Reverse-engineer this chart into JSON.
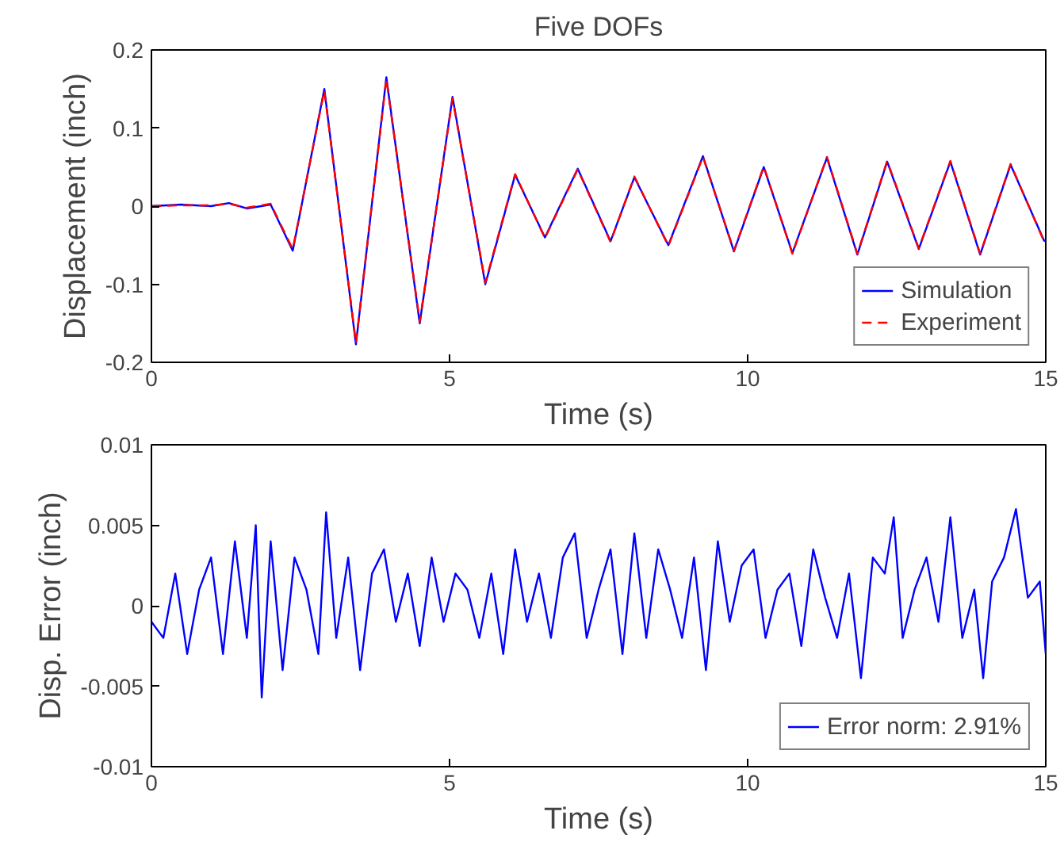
{
  "chart_data": [
    {
      "type": "line",
      "title": "Five DOFs",
      "xlabel": "Time (s)",
      "ylabel": "Displacement (inch)",
      "xlim": [
        0,
        15
      ],
      "ylim": [
        -0.2,
        0.2
      ],
      "xticks": [
        0,
        5,
        10,
        15
      ],
      "yticks": [
        -0.2,
        -0.1,
        0,
        0.1,
        0.2
      ],
      "grid": false,
      "legend": "bottom right",
      "marker": "none",
      "x": [
        0,
        0.5,
        1,
        1.3,
        1.6,
        2,
        2.37,
        2.9,
        3.43,
        3.94,
        4.5,
        5.05,
        5.6,
        6.1,
        6.6,
        7.15,
        7.7,
        8.1,
        8.67,
        9.25,
        9.77,
        10.27,
        10.75,
        11.33,
        11.84,
        12.34,
        12.87,
        13.4,
        13.9,
        14.41,
        14.97,
        15
      ],
      "series": [
        {
          "name": "Simulation",
          "color": "#0000ff",
          "line_style": "solid",
          "values": [
            0,
            0.002,
            0,
            0.004,
            -0.003,
            0.002,
            -0.057,
            0.15,
            -0.177,
            0.165,
            -0.15,
            0.14,
            -0.1,
            0.04,
            -0.04,
            0.048,
            -0.045,
            0.037,
            -0.05,
            0.064,
            -0.058,
            0.05,
            -0.06,
            0.062,
            -0.062,
            0.057,
            -0.055,
            0.057,
            -0.062,
            0.053,
            -0.044,
            -0.045
          ]
        },
        {
          "name": "Experiment",
          "color": "#ff0000",
          "line_style": "dashed",
          "values": [
            0,
            0.001,
            0.001,
            0.003,
            -0.002,
            0.003,
            -0.055,
            0.148,
            -0.175,
            0.163,
            -0.148,
            0.138,
            -0.098,
            0.041,
            -0.041,
            0.047,
            -0.046,
            0.038,
            -0.051,
            0.063,
            -0.057,
            0.051,
            -0.061,
            0.063,
            -0.061,
            0.058,
            -0.054,
            0.058,
            -0.061,
            0.054,
            -0.045,
            -0.046
          ]
        }
      ]
    },
    {
      "type": "line",
      "xlabel": "Time (s)",
      "ylabel": "Disp. Error (inch)",
      "xlim": [
        0,
        15
      ],
      "ylim": [
        -0.01,
        0.01
      ],
      "xticks": [
        0,
        5,
        10,
        15
      ],
      "yticks": [
        -0.01,
        -0.005,
        0,
        0.005,
        0.01
      ],
      "grid": false,
      "legend": "bottom right",
      "marker": "none",
      "x": [
        0,
        0.2,
        0.4,
        0.6,
        0.8,
        1.0,
        1.2,
        1.4,
        1.6,
        1.75,
        1.85,
        2.0,
        2.2,
        2.4,
        2.6,
        2.8,
        2.93,
        3.1,
        3.3,
        3.5,
        3.7,
        3.9,
        4.1,
        4.3,
        4.5,
        4.7,
        4.9,
        5.1,
        5.3,
        5.5,
        5.7,
        5.9,
        6.1,
        6.3,
        6.5,
        6.7,
        6.9,
        7.1,
        7.3,
        7.5,
        7.7,
        7.9,
        8.1,
        8.3,
        8.5,
        8.7,
        8.9,
        9.1,
        9.3,
        9.5,
        9.7,
        9.9,
        10.1,
        10.3,
        10.5,
        10.7,
        10.9,
        11.1,
        11.3,
        11.5,
        11.7,
        11.9,
        12.1,
        12.3,
        12.45,
        12.6,
        12.8,
        13.0,
        13.2,
        13.4,
        13.6,
        13.8,
        13.95,
        14.1,
        14.3,
        14.5,
        14.7,
        14.9,
        15
      ],
      "series": [
        {
          "name": "Error norm: 2.91%",
          "color": "#0000ff",
          "line_style": "solid",
          "values": [
            -0.001,
            -0.002,
            0.002,
            -0.003,
            0.001,
            0.003,
            -0.003,
            0.004,
            -0.002,
            0.005,
            -0.0057,
            0.004,
            -0.004,
            0.003,
            0.001,
            -0.003,
            0.0058,
            -0.002,
            0.003,
            -0.004,
            0.002,
            0.0035,
            -0.001,
            0.002,
            -0.0025,
            0.003,
            -0.001,
            0.002,
            0.001,
            -0.002,
            0.002,
            -0.003,
            0.0035,
            -0.001,
            0.002,
            -0.002,
            0.003,
            0.0045,
            -0.002,
            0.001,
            0.0035,
            -0.003,
            0.0045,
            -0.002,
            0.0035,
            0.001,
            -0.002,
            0.003,
            -0.004,
            0.004,
            -0.001,
            0.0025,
            0.0035,
            -0.002,
            0.001,
            0.002,
            -0.0025,
            0.0035,
            0.0005,
            -0.002,
            0.002,
            -0.0045,
            0.003,
            0.002,
            0.0055,
            -0.002,
            0.001,
            0.003,
            -0.001,
            0.0055,
            -0.002,
            0.001,
            -0.0045,
            0.0015,
            0.003,
            0.006,
            0.0005,
            0.0015,
            -0.003
          ]
        }
      ]
    }
  ]
}
